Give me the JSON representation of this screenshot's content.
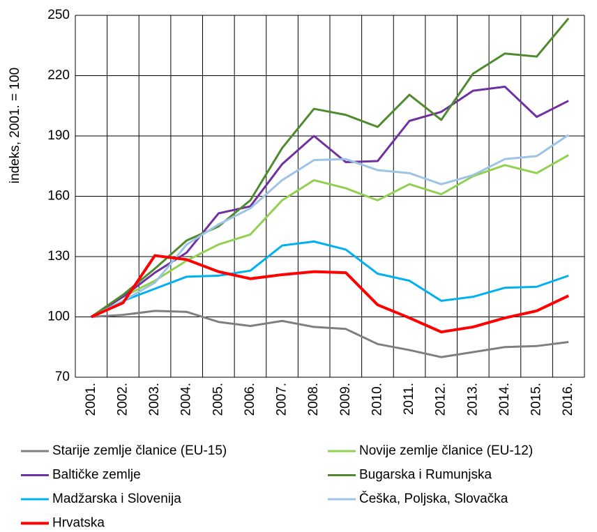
{
  "chart_data": {
    "type": "line",
    "y_label": "indeks, 2001. = 100",
    "categories": [
      "2001.",
      "2002.",
      "2003.",
      "2004.",
      "2005.",
      "2006.",
      "2007.",
      "2008.",
      "2009.",
      "2010.",
      "2011.",
      "2012.",
      "2013.",
      "2014.",
      "2015.",
      "2016."
    ],
    "series": [
      {
        "name": "Starije zemlje članice (EU-15)",
        "color": "#7f7f7f",
        "values": [
          100,
          101,
          103,
          102.5,
          97.5,
          95.5,
          98,
          95,
          94,
          86.5,
          83.5,
          80,
          82.5,
          85,
          85.5,
          87.5
        ]
      },
      {
        "name": "Novije zemlje članice (EU-12)",
        "color": "#92d050",
        "values": [
          100,
          110,
          118,
          128,
          136,
          141,
          158,
          168,
          164,
          158,
          166,
          161,
          170,
          175.5,
          171.5,
          180.5
        ]
      },
      {
        "name": "Baltičke zemlje",
        "color": "#7030a0",
        "values": [
          100,
          110,
          122,
          132,
          151.5,
          155,
          176,
          190,
          177,
          177.5,
          197.5,
          202,
          212.5,
          214.5,
          199.5,
          207.5
        ]
      },
      {
        "name": "Bugarska i Rumunjska",
        "color": "#4f8a2e",
        "values": [
          100,
          111,
          124,
          138,
          145,
          158,
          184,
          203.5,
          200.5,
          194.5,
          210.5,
          198,
          221,
          231,
          229.5,
          248.5
        ]
      },
      {
        "name": "Madžarska i Slovenija",
        "color": "#00b0f0",
        "values": [
          100,
          108,
          114,
          120,
          120.5,
          123,
          135.5,
          137.5,
          133.5,
          121.5,
          118,
          108,
          110,
          114.5,
          115,
          120.5
        ]
      },
      {
        "name": "Češka, Poljska, Slovačka",
        "color": "#9dc3e6",
        "values": [
          100,
          108,
          117,
          136,
          146,
          154,
          168,
          178,
          178.5,
          173,
          171.5,
          166,
          170.5,
          178.5,
          180,
          190.5
        ]
      },
      {
        "name": "Hrvatska",
        "color": "#ff0000",
        "values": [
          100,
          107,
          130.5,
          128.5,
          122.5,
          119,
          121,
          122.5,
          122,
          106,
          99.5,
          92.5,
          95,
          99.5,
          103,
          110.5
        ]
      }
    ],
    "ylim": [
      70,
      250
    ],
    "yticks": [
      70,
      100,
      130,
      160,
      190,
      220,
      250
    ],
    "grid": true
  }
}
